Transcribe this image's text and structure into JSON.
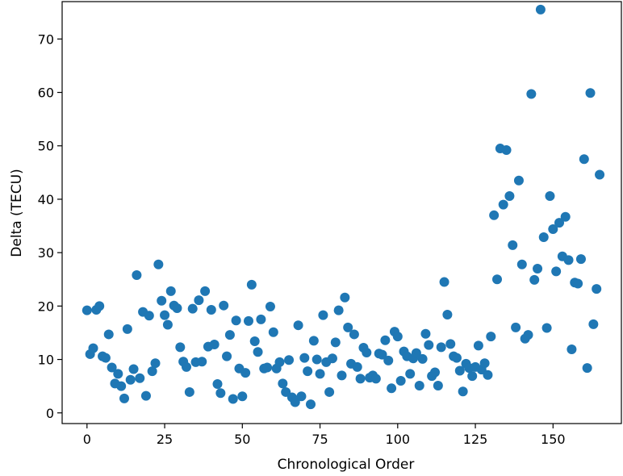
{
  "chart_data": {
    "type": "scatter",
    "xlabel": "Chronological Order",
    "ylabel": "Delta (TECU)",
    "xlim": [
      -8,
      172
    ],
    "ylim": [
      -2,
      77
    ],
    "x_ticks": [
      0,
      25,
      50,
      75,
      100,
      125,
      150
    ],
    "y_ticks": [
      0,
      10,
      20,
      30,
      40,
      50,
      60,
      70
    ],
    "x_tick_labels": [
      "0",
      "25",
      "50",
      "75",
      "100",
      "125",
      "150"
    ],
    "y_tick_labels": [
      "0",
      "10",
      "20",
      "30",
      "40",
      "50",
      "60",
      "70"
    ],
    "grid": false,
    "marker_color": "#1f77b4",
    "x": [
      0,
      1,
      2,
      3,
      4,
      5,
      6,
      7,
      8,
      9,
      10,
      11,
      12,
      13,
      14,
      15,
      16,
      17,
      18,
      19,
      20,
      21,
      22,
      23,
      24,
      25,
      26,
      27,
      28,
      29,
      30,
      31,
      32,
      33,
      34,
      35,
      36,
      37,
      38,
      39,
      40,
      41,
      42,
      43,
      44,
      45,
      46,
      47,
      48,
      49,
      50,
      51,
      52,
      53,
      54,
      55,
      56,
      57,
      58,
      59,
      60,
      61,
      62,
      63,
      64,
      65,
      66,
      67,
      68,
      69,
      70,
      71,
      72,
      73,
      74,
      75,
      76,
      77,
      78,
      79,
      80,
      81,
      82,
      83,
      84,
      85,
      86,
      87,
      88,
      89,
      90,
      91,
      92,
      93,
      94,
      95,
      96,
      97,
      98,
      99,
      100,
      101,
      102,
      103,
      104,
      105,
      106,
      107,
      108,
      109,
      110,
      111,
      112,
      113,
      114,
      115,
      116,
      117,
      118,
      119,
      120,
      121,
      122,
      123,
      124,
      125,
      126,
      127,
      128,
      129,
      130,
      131,
      132,
      133,
      134,
      135,
      136,
      137,
      138,
      139,
      140,
      141,
      142,
      143,
      144,
      145,
      146,
      147,
      148,
      149,
      150,
      151,
      152,
      153,
      154,
      155,
      156,
      157,
      158,
      159,
      160,
      161,
      162,
      163,
      164,
      165
    ],
    "y": [
      19.2,
      11.0,
      12.1,
      19.3,
      20.0,
      10.6,
      10.3,
      14.7,
      8.5,
      5.5,
      7.3,
      5.0,
      2.7,
      15.7,
      6.2,
      8.2,
      25.8,
      6.5,
      18.9,
      3.2,
      18.2,
      7.8,
      9.3,
      27.8,
      21.0,
      18.3,
      16.5,
      22.8,
      20.1,
      19.6,
      12.3,
      9.6,
      8.6,
      3.9,
      19.5,
      9.5,
      21.1,
      9.6,
      22.8,
      12.4,
      19.3,
      12.8,
      5.4,
      3.7,
      20.1,
      10.6,
      14.6,
      2.6,
      17.3,
      8.3,
      3.1,
      7.5,
      17.2,
      24.0,
      13.4,
      11.4,
      17.5,
      8.3,
      8.5,
      19.9,
      15.1,
      8.3,
      9.5,
      5.5,
      3.9,
      9.9,
      2.9,
      2.0,
      16.4,
      3.1,
      10.3,
      7.8,
      1.6,
      13.5,
      10.0,
      7.3,
      18.3,
      9.5,
      3.9,
      10.2,
      13.2,
      19.2,
      7.0,
      21.6,
      16.0,
      9.2,
      14.7,
      8.6,
      6.4,
      12.2,
      11.3,
      6.6,
      7.0,
      6.4,
      11.1,
      10.9,
      13.6,
      9.8,
      4.6,
      15.2,
      14.3,
      6.0,
      11.5,
      10.6,
      7.3,
      10.2,
      11.2,
      5.1,
      10.1,
      14.8,
      12.7,
      6.9,
      7.6,
      5.1,
      12.3,
      24.5,
      18.4,
      12.9,
      10.6,
      10.3,
      7.9,
      4.0,
      9.2,
      8.4,
      6.9,
      8.6,
      12.6,
      8.1,
      9.3,
      7.1,
      14.3,
      37.0,
      25.0,
      49.5,
      39.0,
      49.2,
      40.6,
      31.4,
      16.0,
      43.5,
      27.8,
      13.9,
      14.6,
      59.7,
      24.9,
      27.0,
      75.5,
      32.9,
      15.9,
      40.6,
      34.4,
      26.5,
      35.6,
      29.3,
      36.7,
      28.6,
      11.9,
      24.4,
      24.2,
      28.8,
      47.5,
      8.4,
      59.9,
      16.6,
      23.2,
      44.6
    ]
  }
}
